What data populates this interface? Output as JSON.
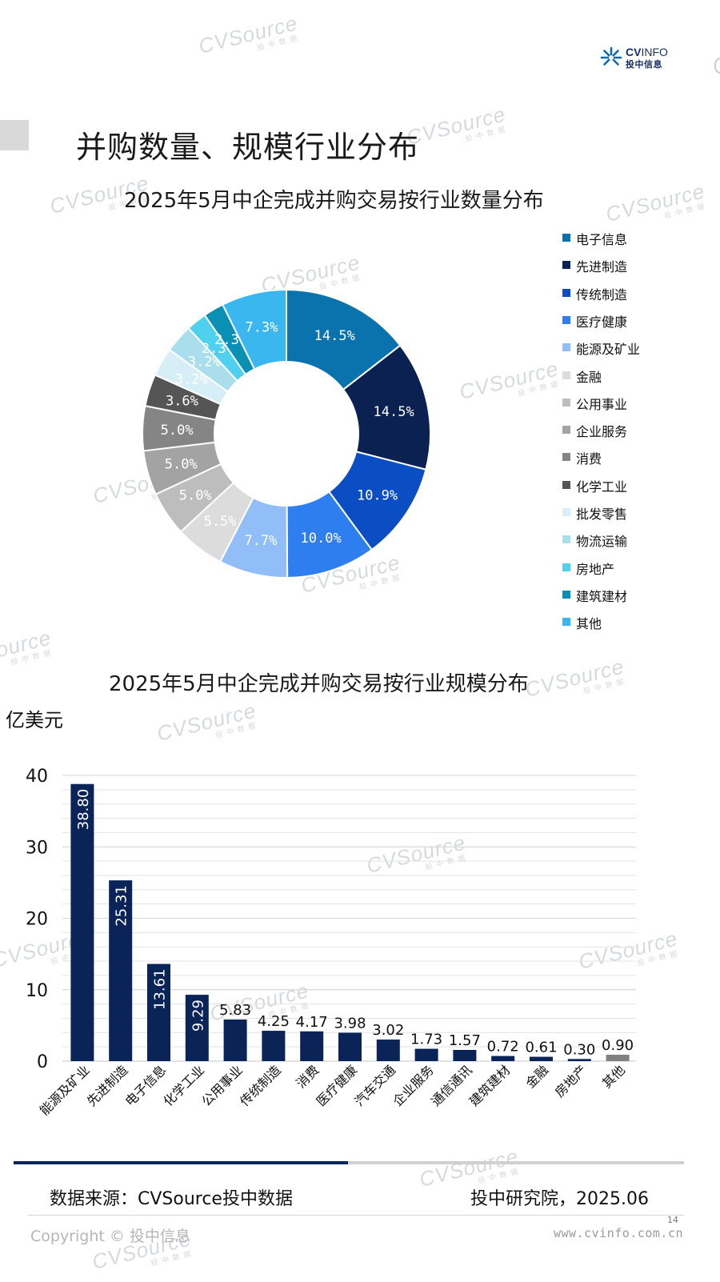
{
  "header": {
    "logo_text_en_bold": "CV",
    "logo_text_en_light": "INFO",
    "logo_text_cn": "投中信息"
  },
  "page_title": "并购数量、规模行业分布",
  "watermark": {
    "brand": "CVSource",
    "sub": "投中数据"
  },
  "colors": {
    "navy": "#0b2457",
    "bar": "#0b2457",
    "other_bar": "#808080",
    "rule_dark": "#0b2457",
    "rule_light": "#d0d0d0"
  },
  "chart_data": [
    {
      "type": "donut",
      "title": "2025年5月中企完成并购交易按行业数量分布",
      "legend_position": "right",
      "slices": [
        {
          "name": "电子信息",
          "value": 14.5,
          "label": "14.5%",
          "color": "#0a73ae",
          "text_color": "#ffffff"
        },
        {
          "name": "先进制造",
          "value": 14.5,
          "label": "14.5%",
          "color": "#0b2151",
          "text_color": "#ffffff"
        },
        {
          "name": "传统制造",
          "value": 10.9,
          "label": "10.9%",
          "color": "#0b4ec4",
          "text_color": "#ffffff"
        },
        {
          "name": "医疗健康",
          "value": 10.0,
          "label": "10.0%",
          "color": "#2f7ef0",
          "text_color": "#ffffff"
        },
        {
          "name": "能源及矿业",
          "value": 7.7,
          "label": "7.7%",
          "color": "#91bef7",
          "text_color": "#ffffff"
        },
        {
          "name": "金融",
          "value": 5.5,
          "label": "5.5%",
          "color": "#dcdcdc",
          "text_color": "#ffffff"
        },
        {
          "name": "公用事业",
          "value": 5.0,
          "label": "5.0%",
          "color": "#bdbdbd",
          "text_color": "#ffffff"
        },
        {
          "name": "企业服务",
          "value": 5.0,
          "label": "5.0%",
          "color": "#a3a3a3",
          "text_color": "#ffffff"
        },
        {
          "name": "消费",
          "value": 5.0,
          "label": "5.0%",
          "color": "#858585",
          "text_color": "#ffffff"
        },
        {
          "name": "化学工业",
          "value": 3.6,
          "label": "3.6%",
          "color": "#555555",
          "text_color": "#ffffff"
        },
        {
          "name": "批发零售",
          "value": 3.2,
          "label": "3.2%",
          "color": "#d6eef5",
          "text_color": "#ffffff"
        },
        {
          "name": "物流运输",
          "value": 3.2,
          "label": "3.2%",
          "color": "#abdeed",
          "text_color": "#ffffff"
        },
        {
          "name": "房地产",
          "value": 2.3,
          "label": "2.3%",
          "color": "#4fd0ef",
          "text_color": "#ffffff"
        },
        {
          "name": "建筑建材",
          "value": 2.3,
          "label": "2.3%",
          "color": "#0a8fb5",
          "text_color": "#ffffff"
        },
        {
          "name": "其他",
          "value": 7.3,
          "label": "7.3%",
          "color": "#39b7ee",
          "text_color": "#ffffff"
        }
      ]
    },
    {
      "type": "bar",
      "title": "2025年5月中企完成并购交易按行业规模分布",
      "ylabel": "亿美元",
      "ylim": [
        0,
        40
      ],
      "yticks": [
        0,
        10,
        20,
        30,
        40
      ],
      "grid": true,
      "categories": [
        "能源及矿业",
        "先进制造",
        "电子信息",
        "化学工业",
        "公用事业",
        "传统制造",
        "消费",
        "医疗健康",
        "汽车交通",
        "企业服务",
        "通信通讯",
        "建筑建材",
        "金融",
        "房地产",
        "其他"
      ],
      "values": [
        38.8,
        25.31,
        13.61,
        9.29,
        5.83,
        4.25,
        4.17,
        3.98,
        3.02,
        1.73,
        1.57,
        0.72,
        0.61,
        0.3,
        0.9
      ],
      "value_labels": [
        "38.80",
        "25.31",
        "13.61",
        "9.29",
        "5.83",
        "4.25",
        "4.17",
        "3.98",
        "3.02",
        "1.73",
        "1.57",
        "0.72",
        "0.61",
        "0.30",
        "0.90"
      ],
      "bar_colors": [
        "#0b2457",
        "#0b2457",
        "#0b2457",
        "#0b2457",
        "#0b2457",
        "#0b2457",
        "#0b2457",
        "#0b2457",
        "#0b2457",
        "#0b2457",
        "#0b2457",
        "#0b2457",
        "#0b2457",
        "#0b2457",
        "#808080"
      ]
    }
  ],
  "footer": {
    "source": "数据来源：CVSource投中数据",
    "credit": "投中研究院，2025.06",
    "copyright": "Copyright © 投中信息",
    "website": "www.cvinfo.com.cn",
    "page_number": "14"
  }
}
